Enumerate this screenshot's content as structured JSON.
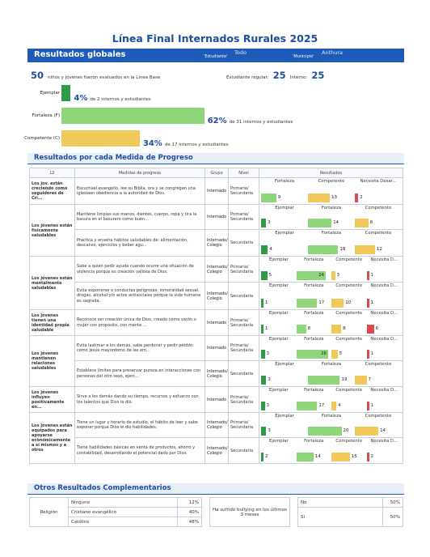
{
  "title": "Línea Final Internados Rurales 2025",
  "header": {
    "section": "Resultados globales",
    "estudiante_label": "'Estudiante'",
    "estudiante_value": "Todo",
    "municipio_label": "'Municipio'",
    "municipio_value": "Anthura"
  },
  "summary": {
    "count": "50",
    "count_text": "niños y jóvenes fueron evaluados en la Línea Base",
    "regular_label": "Estudiante regular:",
    "regular_value": "25",
    "interno_label": "Interno:",
    "interno_value": "25"
  },
  "global_chart": {
    "bars": [
      {
        "label": "Ejemplar",
        "percent": 4,
        "pct_text": "4%",
        "detail": "de 2 internos y estudiantes",
        "color": "#2f9a48"
      },
      {
        "label": "Fortaleza (F)",
        "percent": 62,
        "pct_text": "62%",
        "detail": "de 31 internos y estudiantes",
        "color": "#8fd67a"
      },
      {
        "label": "Competente (C)",
        "percent": 34,
        "pct_text": "34%",
        "detail": "de 17 internos y estudiantes",
        "color": "#f0c95a"
      }
    ]
  },
  "progress_section": "Resultados por cada Medida de Progreso",
  "table_headers": {
    "l2": "L2",
    "medidas": "Medidas de progreso",
    "grupo": "Grupo",
    "nivel": "Nivel",
    "resultados": "Resultados"
  },
  "colors": {
    "ejemplar": "#2f9a48",
    "fortaleza": "#8fd67a",
    "competente": "#f0c95a",
    "necesita": "#de4b4b",
    "primary": "#1e5bb8"
  },
  "rows": [
    {
      "area": "Los jov. están creciendo como seguidores de Cri...",
      "measure": "Escuchael evangelio, lee su Biblia, ora y se congregan una iglesiaen obediencia a la autoridad de Dios.",
      "grupo": "Internado",
      "nivel": "Primaria/ Secundaria",
      "results": [
        {
          "label": "Fortaleza",
          "value": 9,
          "color": "fortaleza"
        },
        {
          "label": "Competente",
          "value": 13,
          "color": "competente"
        },
        {
          "label": "Necesita Desar...",
          "value": 2,
          "color": "necesita"
        }
      ]
    },
    {
      "area": "Los jóvenes están físicamente saludables",
      "measure": "Mantiene limpias sus manos, dientes, cuerpo, ropa y tira la basura en el basurero como buen...",
      "grupo": "Internado",
      "nivel": "Primaria/ Secundaria",
      "results": [
        {
          "label": "Ejemplar",
          "value": 3,
          "color": "ejemplar"
        },
        {
          "label": "Fortaleza",
          "value": 14,
          "color": "fortaleza"
        },
        {
          "label": "Competente",
          "value": 8,
          "color": "competente"
        }
      ]
    },
    {
      "area": "",
      "measure": "Practica y enseña hábitos saludables de: alimentación, descanso, ejercicios y beber agu...",
      "grupo": "Internado/ Colegio",
      "nivel": "Secundaria",
      "results": [
        {
          "label": "Ejemplar",
          "value": 4,
          "color": "ejemplar"
        },
        {
          "label": "Fortaleza",
          "value": 18,
          "color": "fortaleza"
        },
        {
          "label": "Competente",
          "value": 12,
          "color": "competente"
        }
      ]
    },
    {
      "area": "Los jóvenes están mentalmente saludables",
      "measure": "Sabe a quién pedir ayuda cuando ocurre una situación de violencia porque es creación valiosa de Dios.",
      "grupo": "Internado/ Colegio",
      "nivel": "Primaria/ Secundaria",
      "results": [
        {
          "label": "Ejemplar",
          "value": 5,
          "color": "ejemplar"
        },
        {
          "label": "Fortaleza",
          "value": 24,
          "color": "fortaleza"
        },
        {
          "label": "Competente",
          "value": 3,
          "color": "competente"
        },
        {
          "label": "Necesita D...",
          "value": 1,
          "color": "necesita"
        }
      ]
    },
    {
      "area": "",
      "measure": "Evita exponerse a conductas peligrosas: inmoralidad sexual, drogas, alcohol y/o actos antisociales porque la vida humana es sagrada.",
      "grupo": "Internado/ Colegio",
      "nivel": "Secundaria",
      "results": [
        {
          "label": "Ejemplar",
          "value": 1,
          "color": "ejemplar"
        },
        {
          "label": "Fortaleza",
          "value": 17,
          "color": "fortaleza"
        },
        {
          "label": "Competente",
          "value": 10,
          "color": "competente"
        },
        {
          "label": "Necesita D...",
          "value": 1,
          "color": "necesita"
        }
      ]
    },
    {
      "area": "Los jóvenes tienen una identidad propia saludable",
      "measure": "Reconoce ser creación única de Dios, creado como varón o mujer con propósito, con mente ...",
      "grupo": "Internado",
      "nivel": "Primaria/ Secundaria",
      "results": [
        {
          "label": "Ejemplar",
          "value": 1,
          "color": "ejemplar"
        },
        {
          "label": "Fortaleza",
          "value": 8,
          "color": "fortaleza"
        },
        {
          "label": "Competente",
          "value": 8,
          "color": "competente"
        },
        {
          "label": "Necesita D...",
          "value": 6,
          "color": "necesita"
        }
      ]
    },
    {
      "area": "Los jóvenes mantienen relaciones saludables",
      "measure": "Evita lastimar a los demás, sabe perdonar y pedir perdón como Jesús mayordomo de las em...",
      "grupo": "Internado",
      "nivel": "Primaria/ Secundaria",
      "results": [
        {
          "label": "Ejemplar",
          "value": 3,
          "color": "ejemplar"
        },
        {
          "label": "Fortaleza",
          "value": 26,
          "color": "fortaleza"
        },
        {
          "label": "Competente",
          "value": 5,
          "color": "competente"
        },
        {
          "label": "Necesita D...",
          "value": 1,
          "color": "necesita"
        }
      ]
    },
    {
      "area": "",
      "measure": "Establece límites para preservar pureza en interacciones con personas del otro sexo, ejerc...",
      "grupo": "Internado/ Colegio",
      "nivel": "Secundaria",
      "results": [
        {
          "label": "Ejemplar",
          "value": 3,
          "color": "ejemplar"
        },
        {
          "label": "Fortaleza",
          "value": 19,
          "color": "fortaleza"
        },
        {
          "label": "Competente",
          "value": 7,
          "color": "competente"
        }
      ]
    },
    {
      "area": "Los jóvenes influyen positivamente en...",
      "measure": "Sirve a los demás dando su tiempo, recursos y esfuerzo con los talentos que Dios le dio.",
      "grupo": "Internado",
      "nivel": "Primaria/ Secundaria",
      "results": [
        {
          "label": "Ejemplar",
          "value": 3,
          "color": "ejemplar"
        },
        {
          "label": "Fortaleza",
          "value": 17,
          "color": "fortaleza"
        },
        {
          "label": "Competente",
          "value": 4,
          "color": "competente"
        },
        {
          "label": "Necesita D...",
          "value": 1,
          "color": "necesita"
        }
      ]
    },
    {
      "area": "Los jóvenes están equipados para apoyarse económicamente a sí mismos y a otros",
      "measure": "Tiene un lugar y horario de estudio, el hábito de leer y sabe exponer porque Dios le dio habilidades.",
      "grupo": "Internado/ Colegio",
      "nivel": "Primaria/ Secundaria",
      "results": [
        {
          "label": "Ejemplar",
          "value": 3,
          "color": "ejemplar"
        },
        {
          "label": "Fortaleza",
          "value": 20,
          "color": "fortaleza"
        },
        {
          "label": "Competente",
          "value": 14,
          "color": "competente"
        }
      ]
    },
    {
      "area": "",
      "measure": "Tiene habilidades básicas en venta de productos, ahorro y contabilidad, desarrollando el potencial dado por Dios.",
      "grupo": "Internado/ Colegio",
      "nivel": "Secundaria",
      "results": [
        {
          "label": "Ejemplar",
          "value": 2,
          "color": "ejemplar"
        },
        {
          "label": "Fortaleza",
          "value": 14,
          "color": "fortaleza"
        },
        {
          "label": "Competente",
          "value": 15,
          "color": "competente"
        },
        {
          "label": "Necesita D...",
          "value": 2,
          "color": "necesita"
        }
      ]
    }
  ],
  "other_section": "Otros Resultados Complementarios",
  "religion": {
    "label": "Religión",
    "items": [
      {
        "name": "Ninguno",
        "pct": "12%"
      },
      {
        "name": "Cristiano evangélico",
        "pct": "40%"
      },
      {
        "name": "Católico",
        "pct": "48%"
      }
    ]
  },
  "bullying": {
    "question": "Ha sufrido bullying en los últimos 3 meses",
    "items": [
      {
        "name": "No",
        "pct": "50%"
      },
      {
        "name": "Si",
        "pct": "50%"
      }
    ]
  }
}
